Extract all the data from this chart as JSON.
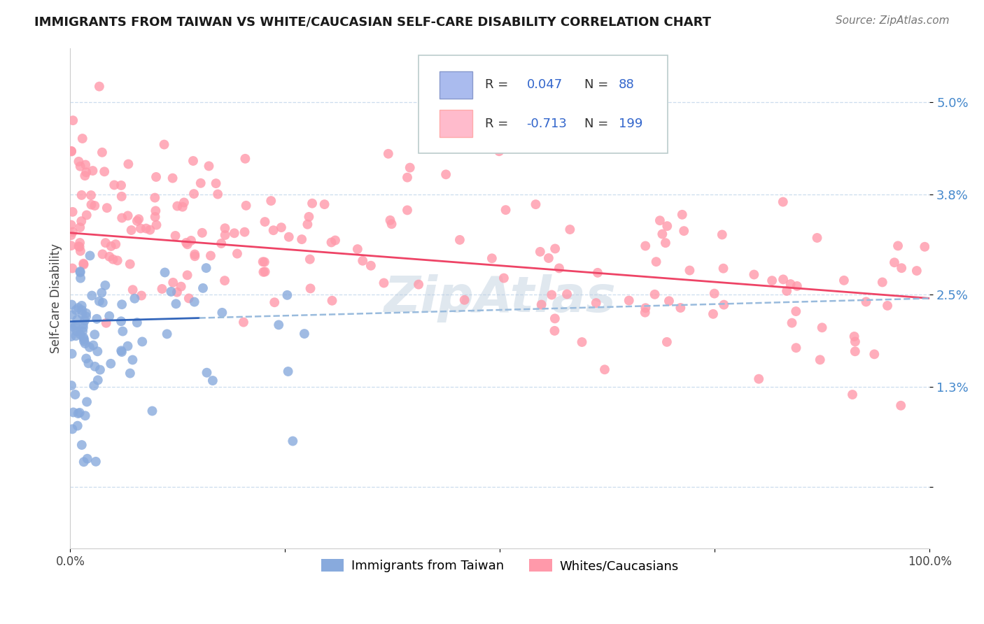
{
  "title": "IMMIGRANTS FROM TAIWAN VS WHITE/CAUCASIAN SELF-CARE DISABILITY CORRELATION CHART",
  "source": "Source: ZipAtlas.com",
  "ylabel": "Self-Care Disability",
  "yticks": [
    0.0,
    0.013,
    0.025,
    0.038,
    0.05
  ],
  "ytick_labels": [
    "",
    "1.3%",
    "2.5%",
    "3.8%",
    "5.0%"
  ],
  "xlim": [
    0.0,
    1.0
  ],
  "ylim": [
    -0.008,
    0.057
  ],
  "color_blue": "#88AADD",
  "color_pink": "#FF99AA",
  "color_blue_scatter": "#7799CC",
  "color_pink_scatter": "#EE8899",
  "color_blue_line": "#3366BB",
  "color_pink_line": "#EE4466",
  "color_dashed_line": "#99BBDD",
  "watermark": "ZipAtlas",
  "legend_box_color": "#DDDDDD",
  "tick_color": "#4488CC",
  "grid_color": "#CCDDEE"
}
